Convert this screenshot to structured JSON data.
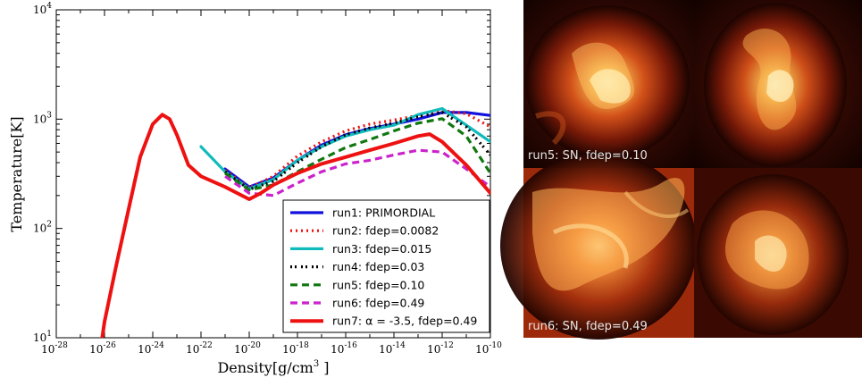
{
  "chart_data": [
    {
      "type": "line",
      "xlabel": "Density[g/cm",
      "xlabel_sup": "3",
      "xlabel_close": " ]",
      "ylabel": "Temperature[K]",
      "xscale": "log",
      "yscale": "log",
      "xlim": [
        1e-28,
        1e-10
      ],
      "ylim": [
        10,
        10000
      ],
      "grid": false,
      "legend_position": "lower-right",
      "x_ticks": [
        {
          "base": "10",
          "exp": "-28"
        },
        {
          "base": "10",
          "exp": "-26"
        },
        {
          "base": "10",
          "exp": "-24"
        },
        {
          "base": "10",
          "exp": "-22"
        },
        {
          "base": "10",
          "exp": "-20"
        },
        {
          "base": "10",
          "exp": "-18"
        },
        {
          "base": "10",
          "exp": "-16"
        },
        {
          "base": "10",
          "exp": "-14"
        },
        {
          "base": "10",
          "exp": "-12"
        },
        {
          "base": "10",
          "exp": "-10"
        }
      ],
      "y_ticks": [
        {
          "base": "10",
          "exp": "1"
        },
        {
          "base": "10",
          "exp": "2"
        },
        {
          "base": "10",
          "exp": "3"
        },
        {
          "base": "10",
          "exp": "4"
        }
      ],
      "series": [
        {
          "name": "run1: PRIMORDIAL",
          "color": "#1111dd",
          "style": "solid",
          "points": [
            [
              1e-21,
              350
            ],
            [
              1e-20,
              240
            ],
            [
              1e-19,
              290
            ],
            [
              1e-18,
              420
            ],
            [
              1e-17,
              580
            ],
            [
              1e-16,
              720
            ],
            [
              1e-15,
              820
            ],
            [
              1e-14,
              900
            ],
            [
              1e-13,
              1000
            ],
            [
              1e-12,
              1150
            ],
            [
              1e-11,
              1150
            ],
            [
              1e-10,
              1080
            ]
          ]
        },
        {
          "name": "run2: fdep=0.0082",
          "color": "#ee1111",
          "style": "dotted",
          "points": [
            [
              1e-21,
              340
            ],
            [
              1e-20,
              235
            ],
            [
              1e-19,
              300
            ],
            [
              1e-18,
              460
            ],
            [
              1e-17,
              620
            ],
            [
              1e-16,
              780
            ],
            [
              1e-15,
              900
            ],
            [
              1e-14,
              980
            ],
            [
              1e-13,
              1080
            ],
            [
              1e-12,
              1200
            ],
            [
              1e-11,
              1120
            ],
            [
              1e-10,
              850
            ]
          ]
        },
        {
          "name": "run3: fdep=0.015",
          "color": "#11bbbb",
          "style": "solid",
          "points": [
            [
              1e-22,
              560
            ],
            [
              1e-21,
              330
            ],
            [
              1e-20,
              230
            ],
            [
              1e-19,
              280
            ],
            [
              1e-18,
              420
            ],
            [
              1e-17,
              560
            ],
            [
              1e-16,
              700
            ],
            [
              1e-15,
              800
            ],
            [
              1e-14,
              880
            ],
            [
              1e-13,
              1100
            ],
            [
              1e-12,
              1250
            ],
            [
              1e-11,
              880
            ],
            [
              1e-10,
              620
            ]
          ]
        },
        {
          "name": "run4: fdep=0.03",
          "color": "#000000",
          "style": "dashdot",
          "points": [
            [
              1e-21,
              330
            ],
            [
              1e-20,
              228
            ],
            [
              1e-19,
              270
            ],
            [
              1e-18,
              400
            ],
            [
              1e-17,
              560
            ],
            [
              1e-16,
              720
            ],
            [
              1e-15,
              830
            ],
            [
              1e-14,
              920
            ],
            [
              1e-13,
              1050
            ],
            [
              1e-12,
              1150
            ],
            [
              1e-11,
              850
            ],
            [
              1e-10,
              470
            ]
          ]
        },
        {
          "name": "run5: fdep=0.10",
          "color": "#117711",
          "style": "dashed",
          "points": [
            [
              1e-21,
              320
            ],
            [
              1e-20,
              225
            ],
            [
              1e-19,
              250
            ],
            [
              1e-18,
              330
            ],
            [
              1e-17,
              430
            ],
            [
              1e-16,
              550
            ],
            [
              1e-15,
              650
            ],
            [
              1e-14,
              780
            ],
            [
              1e-13,
              920
            ],
            [
              1e-12,
              1010
            ],
            [
              1e-11,
              700
            ],
            [
              1e-10,
              320
            ]
          ]
        },
        {
          "name": "run6: fdep=0.49",
          "color": "#cc22cc",
          "style": "dashed",
          "points": [
            [
              1e-21,
              300
            ],
            [
              1e-20,
              210
            ],
            [
              1e-19,
              200
            ],
            [
              1e-18,
              260
            ],
            [
              1e-17,
              330
            ],
            [
              1e-16,
              390
            ],
            [
              1e-15,
              420
            ],
            [
              1e-14,
              470
            ],
            [
              1e-13,
              520
            ],
            [
              1e-12,
              500
            ],
            [
              1e-11,
              350
            ],
            [
              1e-10,
              240
            ]
          ]
        },
        {
          "name": "run7: α = -3.5, fdep=0.49",
          "color": "#ee1111",
          "style": "solid",
          "points": [
            [
              8e-27,
              10
            ],
            [
              1e-26,
              14
            ],
            [
              3e-26,
              45
            ],
            [
              1e-25,
              150
            ],
            [
              3e-25,
              450
            ],
            [
              1e-24,
              900
            ],
            [
              2.5e-24,
              1100
            ],
            [
              5e-24,
              1000
            ],
            [
              1e-23,
              720
            ],
            [
              3e-23,
              380
            ],
            [
              1e-22,
              300
            ],
            [
              1e-21,
              240
            ],
            [
              1e-20,
              185
            ],
            [
              3e-20,
              210
            ],
            [
              1e-19,
              250
            ],
            [
              1e-18,
              320
            ],
            [
              1e-17,
              390
            ],
            [
              1e-16,
              450
            ],
            [
              1e-15,
              520
            ],
            [
              1e-14,
              600
            ],
            [
              1e-13,
              700
            ],
            [
              3e-13,
              730
            ],
            [
              1e-12,
              620
            ],
            [
              1e-11,
              380
            ],
            [
              1e-10,
              210
            ]
          ]
        }
      ]
    }
  ],
  "panels": [
    {
      "caption": "run5: SN, fdep=0.10"
    },
    {
      "caption": "run6: SN, fdep=0.49"
    }
  ]
}
